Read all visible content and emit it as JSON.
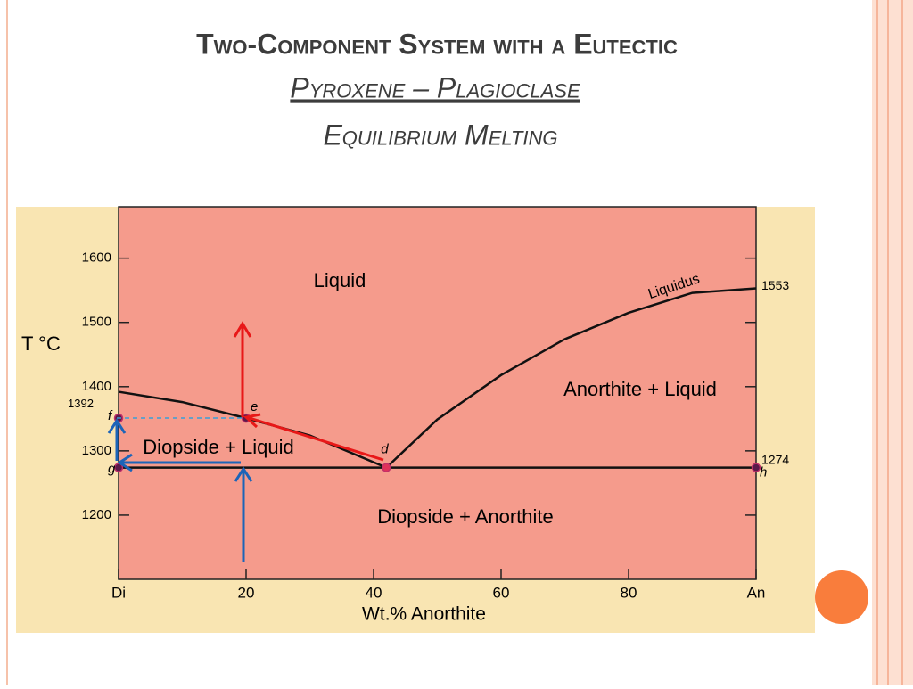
{
  "slide": {
    "title": "Two-Component System with a Eutectic",
    "subtitle": "Pyroxene – Plagioclase",
    "caption": "Equilibrium Melting"
  },
  "chart_data": {
    "type": "line",
    "x_label": "Wt.% Anorthite",
    "y_label": "T °C",
    "xlim": [
      0,
      100
    ],
    "ylim": [
      1100,
      1680
    ],
    "xticks": [
      {
        "value": 0,
        "label": "Di"
      },
      20,
      40,
      60,
      80,
      {
        "value": 100,
        "label": "An"
      }
    ],
    "yticks": [
      1200,
      1300,
      1400,
      1500,
      1600
    ],
    "series": [
      {
        "color": "#111111",
        "x": [
          0,
          10,
          20,
          30,
          42
        ],
        "values": [
          1392,
          1376,
          1351,
          1324,
          1274
        ]
      },
      {
        "name": "Liquidus",
        "color": "#111111",
        "x": [
          42,
          50,
          60,
          70,
          80,
          90,
          100
        ],
        "values": [
          1274,
          1349,
          1418,
          1474,
          1515,
          1546,
          1553
        ]
      },
      {
        "color": "#111111",
        "x": [
          0,
          100
        ],
        "values": [
          1274,
          1274
        ]
      }
    ],
    "temperature_labels": [
      {
        "value": 1392,
        "side": "left"
      },
      {
        "value": 1553,
        "side": "right"
      },
      {
        "value": 1274,
        "side": "right"
      }
    ],
    "points": [
      {
        "label": "f",
        "x": 0,
        "y": 1351,
        "color": "#5a1a4a"
      },
      {
        "label": "g",
        "x": 0,
        "y": 1274,
        "color": "#5a1a4a"
      },
      {
        "label": "e",
        "x": 20,
        "y": 1351,
        "color": "#5a1a4a"
      },
      {
        "label": "d",
        "x": 42,
        "y": 1274,
        "color": "#e0305a"
      },
      {
        "label": "h",
        "x": 100,
        "y": 1274,
        "color": "#5a1a4a"
      }
    ],
    "regions": [
      "Liquid",
      "Anorthite + Liquid",
      "Diopside + Liquid",
      "Diopside + Anorthite"
    ],
    "plot_color": "#f59b8c",
    "frame_color": "#f9e5b2"
  }
}
